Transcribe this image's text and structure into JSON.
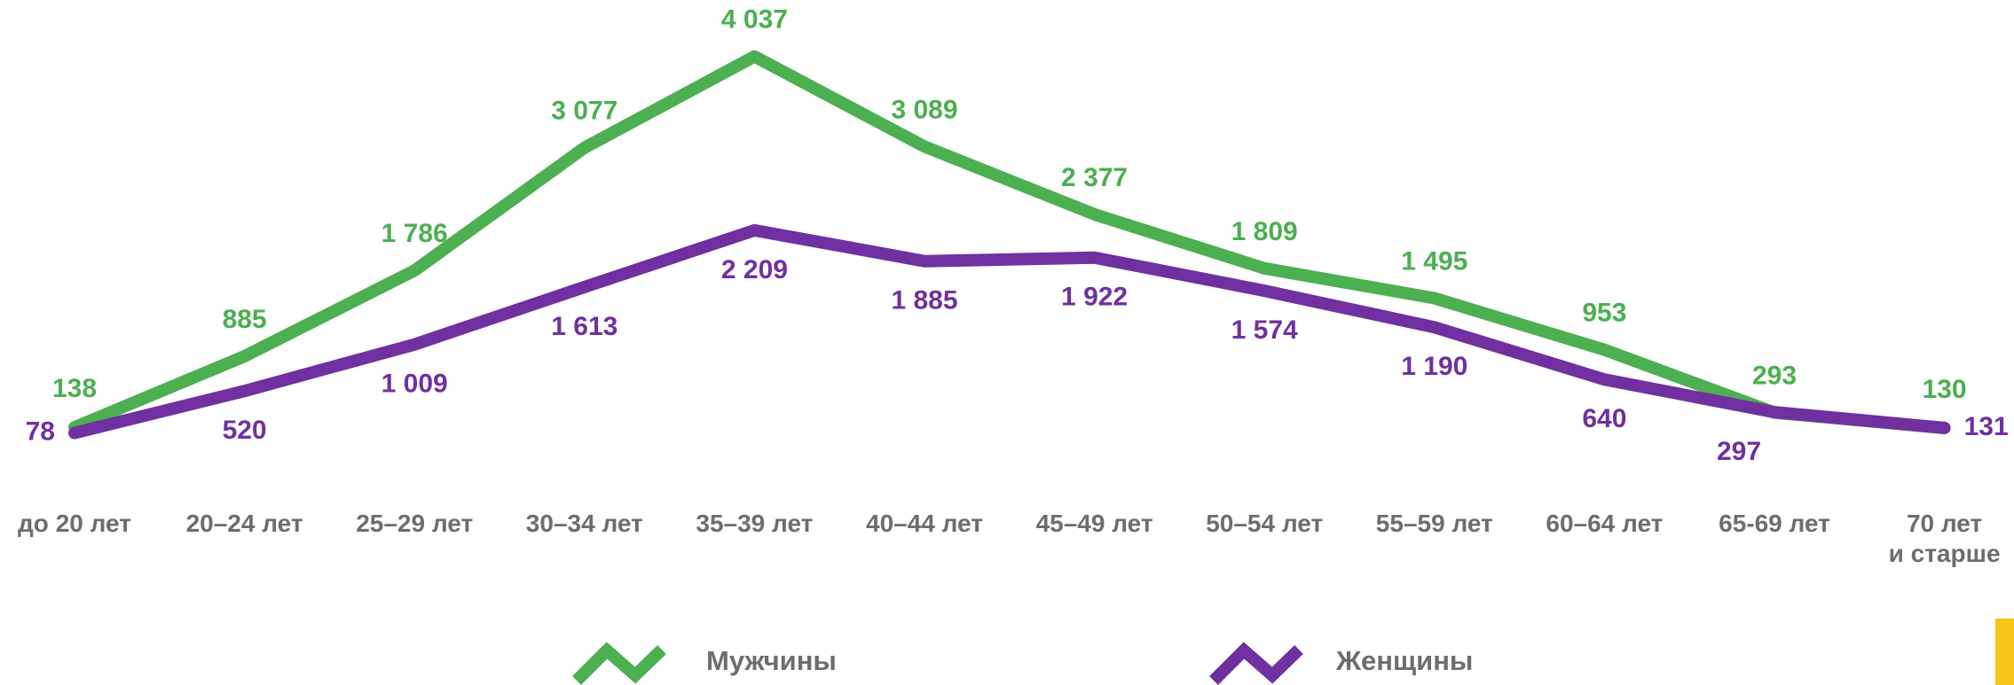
{
  "chart_data": {
    "type": "line",
    "categories": [
      "до 20 лет",
      "20–24 лет",
      "25–29 лет",
      "30–34 лет",
      "35–39 лет",
      "40–44 лет",
      "45–49 лет",
      "50–54 лет",
      "55–59 лет",
      "60–64 лет",
      "65-69 лет",
      "70 лет\nи старше"
    ],
    "series": [
      {
        "name": "Мужчины",
        "color": "#4caf50",
        "values": [
          138,
          885,
          1786,
          3077,
          4037,
          3089,
          2377,
          1809,
          1495,
          953,
          293,
          130
        ],
        "value_labels": [
          "138",
          "885",
          "1 786",
          "3 077",
          "4 037",
          "3 089",
          "2 377",
          "1 809",
          "1 495",
          "953",
          "293",
          "130"
        ]
      },
      {
        "name": "Женщины",
        "color": "#7030a0",
        "values": [
          78,
          520,
          1009,
          1613,
          2209,
          1885,
          1922,
          1574,
          1190,
          640,
          297,
          131
        ],
        "value_labels": [
          "78",
          "520",
          "1 009",
          "1 613",
          "2 209",
          "1 885",
          "1 922",
          "1 574",
          "1 190",
          "640",
          "297",
          "131"
        ]
      }
    ],
    "ylim": [
      0,
      4500
    ]
  }
}
